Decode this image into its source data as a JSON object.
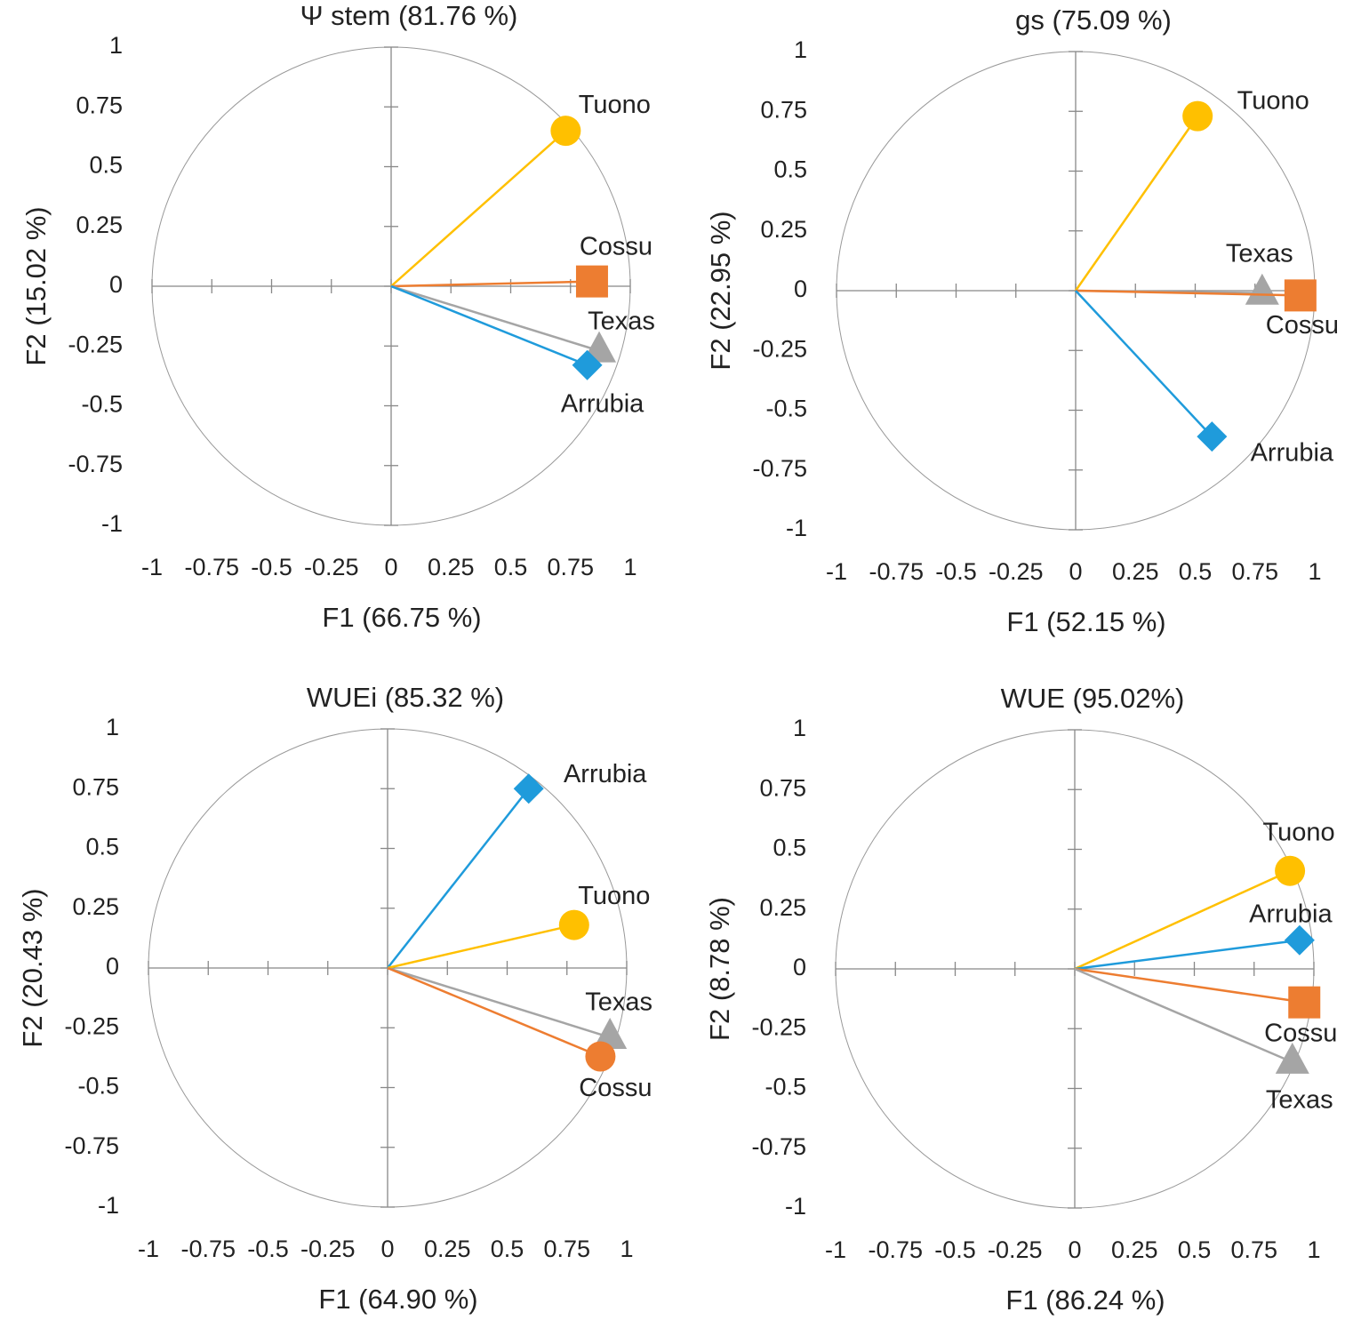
{
  "chart_data": [
    {
      "type": "scatter",
      "title": "Ψ stem (81.76 %)",
      "x_label": "F1 (66.75 %)",
      "y_label": "F2 (15.02 %)",
      "xlim": [
        -1,
        1
      ],
      "ylim": [
        -1,
        1
      ],
      "xticks": [
        -1,
        -0.75,
        -0.5,
        -0.25,
        0,
        0.25,
        0.5,
        0.75,
        1
      ],
      "yticks": [
        -1,
        -0.75,
        -0.5,
        -0.25,
        0,
        0.25,
        0.5,
        0.75,
        1
      ],
      "series": [
        {
          "name": "Tuono",
          "color": "#ffc000",
          "marker": "circle",
          "x": 0.73,
          "y": 0.65
        },
        {
          "name": "Cossu",
          "color": "#ed7d31",
          "marker": "square",
          "x": 0.84,
          "y": 0.02
        },
        {
          "name": "Texas",
          "color": "#a5a5a5",
          "marker": "triangle",
          "x": 0.87,
          "y": -0.27
        },
        {
          "name": "Arrubia",
          "color": "#1f9bdb",
          "marker": "diamond",
          "x": 0.82,
          "y": -0.33
        }
      ]
    },
    {
      "type": "scatter",
      "title": "gs (75.09 %)",
      "x_label": "F1 (52.15 %)",
      "y_label": "F2 (22.95 %)",
      "xlim": [
        -1,
        1
      ],
      "ylim": [
        -1,
        1
      ],
      "xticks": [
        -1,
        -0.75,
        -0.5,
        -0.25,
        0,
        0.25,
        0.5,
        0.75,
        1
      ],
      "yticks": [
        -1,
        -0.75,
        -0.5,
        -0.25,
        0,
        0.25,
        0.5,
        0.75,
        1
      ],
      "series": [
        {
          "name": "Tuono",
          "color": "#ffc000",
          "marker": "circle",
          "x": 0.51,
          "y": 0.73
        },
        {
          "name": "Texas",
          "color": "#a5a5a5",
          "marker": "triangle",
          "x": 0.78,
          "y": -0.01
        },
        {
          "name": "Cossu",
          "color": "#ed7d31",
          "marker": "square",
          "x": 0.94,
          "y": -0.02
        },
        {
          "name": "Arrubia",
          "color": "#1f9bdb",
          "marker": "diamond",
          "x": 0.57,
          "y": -0.61
        }
      ]
    },
    {
      "type": "scatter",
      "title": "WUEi (85.32 %)",
      "x_label": "F1 (64.90 %)",
      "y_label": "F2 (20.43 %)",
      "xlim": [
        -1,
        1
      ],
      "ylim": [
        -1,
        1
      ],
      "xticks": [
        -1,
        -0.75,
        -0.5,
        -0.25,
        0,
        0.25,
        0.5,
        0.75,
        1
      ],
      "yticks": [
        -1,
        -0.75,
        -0.5,
        -0.25,
        0,
        0.25,
        0.5,
        0.75,
        1
      ],
      "series": [
        {
          "name": "Arrubia",
          "color": "#1f9bdb",
          "marker": "diamond",
          "x": 0.59,
          "y": 0.75
        },
        {
          "name": "Tuono",
          "color": "#ffc000",
          "marker": "circle",
          "x": 0.78,
          "y": 0.18
        },
        {
          "name": "Texas",
          "color": "#a5a5a5",
          "marker": "triangle",
          "x": 0.93,
          "y": -0.29
        },
        {
          "name": "Cossu",
          "color": "#ed7d31",
          "marker": "circle",
          "x": 0.89,
          "y": -0.37
        }
      ]
    },
    {
      "type": "scatter",
      "title": "WUE (95.02%)",
      "x_label": "F1 (86.24 %)",
      "y_label": "F2 (8.78 %)",
      "xlim": [
        -1,
        1
      ],
      "ylim": [
        -1,
        1
      ],
      "xticks": [
        -1,
        -0.75,
        -0.5,
        -0.25,
        0,
        0.25,
        0.5,
        0.75,
        1
      ],
      "yticks": [
        -1,
        -0.75,
        -0.5,
        -0.25,
        0,
        0.25,
        0.5,
        0.75,
        1
      ],
      "series": [
        {
          "name": "Tuono",
          "color": "#ffc000",
          "marker": "circle",
          "x": 0.9,
          "y": 0.41
        },
        {
          "name": "Arrubia",
          "color": "#1f9bdb",
          "marker": "diamond",
          "x": 0.94,
          "y": 0.12
        },
        {
          "name": "Cossu",
          "color": "#ed7d31",
          "marker": "square",
          "x": 0.96,
          "y": -0.14
        },
        {
          "name": "Texas",
          "color": "#a5a5a5",
          "marker": "triangle",
          "x": 0.91,
          "y": -0.39
        }
      ]
    }
  ]
}
